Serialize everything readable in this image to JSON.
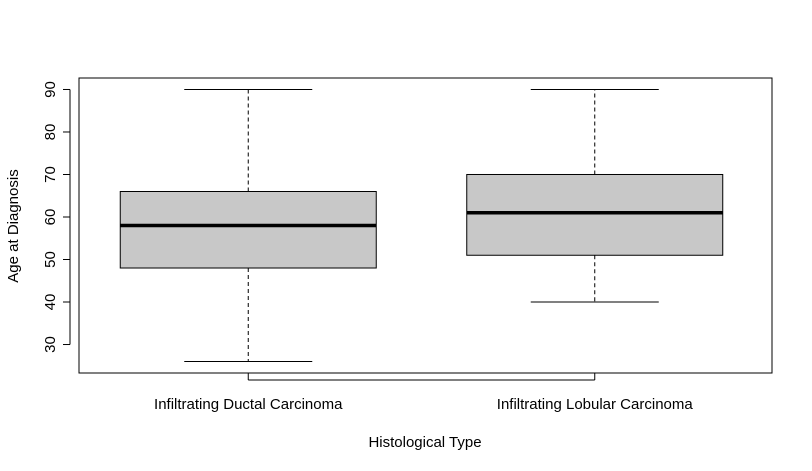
{
  "chart_data": {
    "type": "boxplot",
    "title": "",
    "xlabel": "Histological Type",
    "ylabel": "Age at Diagnosis",
    "ylim": [
      23.3,
      92.7
    ],
    "yticks": [
      30,
      40,
      50,
      60,
      70,
      80,
      90
    ],
    "grid": false,
    "box_fill": "#c8c8c8",
    "categories": [
      "Infiltrating Ductal Carcinoma",
      "Infiltrating Lobular Carcinoma"
    ],
    "boxes": [
      {
        "category": "Infiltrating Ductal Carcinoma",
        "min": 26,
        "q1": 48,
        "median": 58,
        "q3": 66,
        "max": 90
      },
      {
        "category": "Infiltrating Lobular Carcinoma",
        "min": 40,
        "q1": 51,
        "median": 61,
        "q3": 70,
        "max": 90
      }
    ]
  }
}
